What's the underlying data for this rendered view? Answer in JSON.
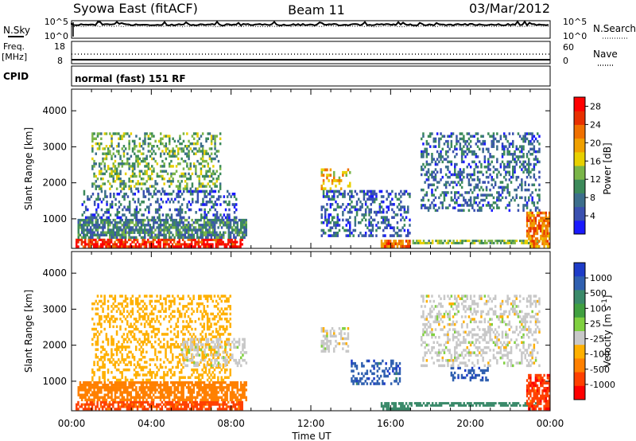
{
  "header": {
    "site": "Syowa East (fitACF)",
    "beam": "Beam 11",
    "date": "03/Mar/2012"
  },
  "summary_panels": {
    "nsky_label": "N.Sky",
    "nsky_ticks": [
      "10^5",
      "10^0"
    ],
    "nsearch_label": "N.Search",
    "nsearch_ticks": [
      "10^5",
      "10^0"
    ],
    "freq_label_line1": "Freq.",
    "freq_label_line2": "[MHz]",
    "freq_ticks": [
      "18",
      "8"
    ],
    "nave_label": "Nave",
    "nave_ticks": [
      "60",
      "0"
    ],
    "cpid_label": "CPID",
    "cpid_text": "normal (fast) 151 RF"
  },
  "chart_data": [
    {
      "type": "heatmap",
      "title": "",
      "quantity": "power",
      "xlabel": "Time UT",
      "ylabel": "Slant Range [km]",
      "x_ticks": [
        "00:00",
        "04:00",
        "08:00",
        "12:00",
        "16:00",
        "20:00",
        "00:00"
      ],
      "xlim_hours": [
        0,
        24
      ],
      "y_ticks": [
        1000,
        2000,
        3000,
        4000
      ],
      "ylim_km": [
        180,
        4600
      ],
      "colorbar_label": "Power [dB]",
      "colorbar_ticks": [
        4,
        8,
        12,
        16,
        20,
        24,
        28
      ],
      "colorbar_range": [
        0,
        30
      ],
      "colorbar_colors": [
        "#1a1aff",
        "#3a50b0",
        "#3c6e8c",
        "#3c8a5a",
        "#7ab548",
        "#e8d000",
        "#f0a000",
        "#f07000",
        "#e83000",
        "#ff0000"
      ],
      "grid": false,
      "patches": [
        {
          "t0": 0.2,
          "t1": 8.6,
          "r0": 200,
          "r1": 450,
          "level": 27
        },
        {
          "t0": 0.3,
          "t1": 8.8,
          "r0": 450,
          "r1": 1000,
          "level": 9
        },
        {
          "t0": 0.5,
          "t1": 8.3,
          "r0": 1000,
          "r1": 1800,
          "level": 6
        },
        {
          "t0": 1.0,
          "t1": 7.5,
          "r0": 1800,
          "r1": 3400,
          "level": 12
        },
        {
          "t0": 12.5,
          "t1": 14.0,
          "r0": 1800,
          "r1": 2400,
          "level": 18
        },
        {
          "t0": 12.5,
          "t1": 17.0,
          "r0": 500,
          "r1": 1800,
          "level": 6
        },
        {
          "t0": 15.5,
          "t1": 17.0,
          "r0": 200,
          "r1": 420,
          "level": 23
        },
        {
          "t0": 17.0,
          "t1": 23.5,
          "r0": 300,
          "r1": 420,
          "level": 13
        },
        {
          "t0": 17.5,
          "t1": 23.5,
          "r0": 1200,
          "r1": 3400,
          "level": 7
        },
        {
          "t0": 22.8,
          "t1": 24.0,
          "r0": 200,
          "r1": 1200,
          "level": 22
        }
      ]
    },
    {
      "type": "heatmap",
      "title": "",
      "quantity": "velocity",
      "xlabel": "Time UT",
      "ylabel": "Slant Range [km]",
      "x_ticks": [
        "00:00",
        "04:00",
        "08:00",
        "12:00",
        "16:00",
        "20:00",
        "00:00"
      ],
      "xlim_hours": [
        0,
        24
      ],
      "y_ticks": [
        1000,
        2000,
        3000,
        4000
      ],
      "ylim_km": [
        180,
        4600
      ],
      "colorbar_label": "Velocity [m s",
      "colorbar_label_sup": "-1",
      "colorbar_label_end": "]",
      "colorbar_ticks": [
        "1000",
        "500",
        "100",
        "25",
        "-25",
        "-100",
        "-500",
        "-1000"
      ],
      "colorbar_colors": [
        "#1e3cc8",
        "#3060b0",
        "#3a8a6a",
        "#40a040",
        "#80d040",
        "#c8c8c8",
        "#ffb000",
        "#ff8000",
        "#ff4000",
        "#ff0000"
      ],
      "grid": false,
      "patches": [
        {
          "t0": 0.2,
          "t1": 8.6,
          "r0": 200,
          "r1": 450,
          "level": -700
        },
        {
          "t0": 0.3,
          "t1": 8.8,
          "r0": 450,
          "r1": 1000,
          "level": -200
        },
        {
          "t0": 1.0,
          "t1": 8.0,
          "r0": 1000,
          "r1": 3400,
          "level": -60
        },
        {
          "t0": 5.5,
          "t1": 8.8,
          "r0": 1400,
          "r1": 2200,
          "level": 0
        },
        {
          "t0": 12.5,
          "t1": 14.0,
          "r0": 1800,
          "r1": 2500,
          "level": 0
        },
        {
          "t0": 14.0,
          "t1": 16.5,
          "r0": 900,
          "r1": 1600,
          "level": 800
        },
        {
          "t0": 15.5,
          "t1": 17.0,
          "r0": 200,
          "r1": 420,
          "level": 300
        },
        {
          "t0": 17.0,
          "t1": 23.5,
          "r0": 300,
          "r1": 420,
          "level": 300
        },
        {
          "t0": 19.0,
          "t1": 21.0,
          "r0": 1000,
          "r1": 1400,
          "level": 800
        },
        {
          "t0": 17.5,
          "t1": 23.5,
          "r0": 1400,
          "r1": 3400,
          "level": 0
        },
        {
          "t0": 22.8,
          "t1": 24.0,
          "r0": 200,
          "r1": 1200,
          "level": -800
        }
      ]
    }
  ]
}
